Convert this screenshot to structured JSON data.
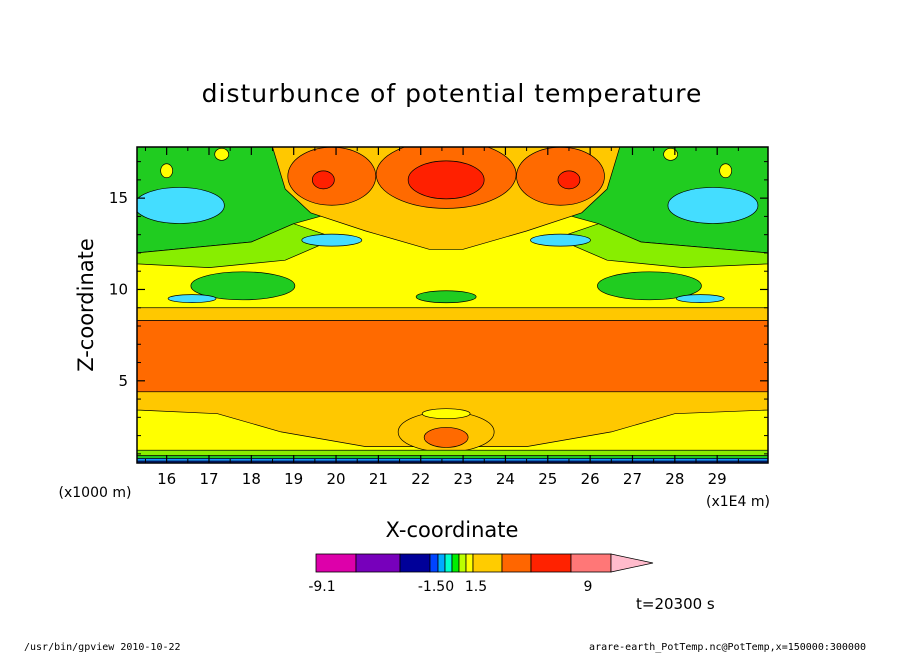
{
  "chart_data": {
    "type": "heatmap",
    "title": "disturbunce of potential temperature",
    "xlabel": "X-coordinate",
    "ylabel": "Z-coordinate",
    "x_ticks": [
      16,
      17,
      18,
      19,
      20,
      21,
      22,
      23,
      24,
      25,
      26,
      27,
      28,
      29
    ],
    "x_tick_labels": [
      "16",
      "17",
      "18",
      "19",
      "20",
      "21",
      "22",
      "23",
      "24",
      "25",
      "26",
      "27",
      "28",
      "29"
    ],
    "x_range": [
      15.3,
      30.2
    ],
    "x_unit": "(x1E4 m)",
    "y_ticks": [
      5,
      10,
      15
    ],
    "y_tick_labels": [
      "5",
      "10",
      "15"
    ],
    "y_range": [
      0.5,
      17.8
    ],
    "y_unit": "(x1000 m)",
    "colorbar": {
      "colors": [
        "#dd00aa",
        "#7700bb",
        "#000099",
        "#0044ff",
        "#00aaff",
        "#00ffcc",
        "#00ee00",
        "#bbff00",
        "#ffff00",
        "#ffcc00",
        "#ff6600",
        "#ff2200",
        "#ff7777",
        "#ffbbcc"
      ],
      "tick_labels": [
        "-9.1",
        "-1.50",
        "1.5",
        "9"
      ]
    },
    "fields": {
      "colors": [
        "#000080",
        "#0030c0",
        "#1890ff",
        "#44ddff",
        "#20cc20",
        "#88ee00",
        "#ffff00",
        "#ffc800",
        "#ff6a00",
        "#ff2000"
      ]
    },
    "time_label": "t=20300 s"
  },
  "footer": {
    "left": "/usr/bin/gpview  2010-10-22",
    "right": "arare-earth_PotTemp.nc@PotTemp,x=150000:300000"
  }
}
